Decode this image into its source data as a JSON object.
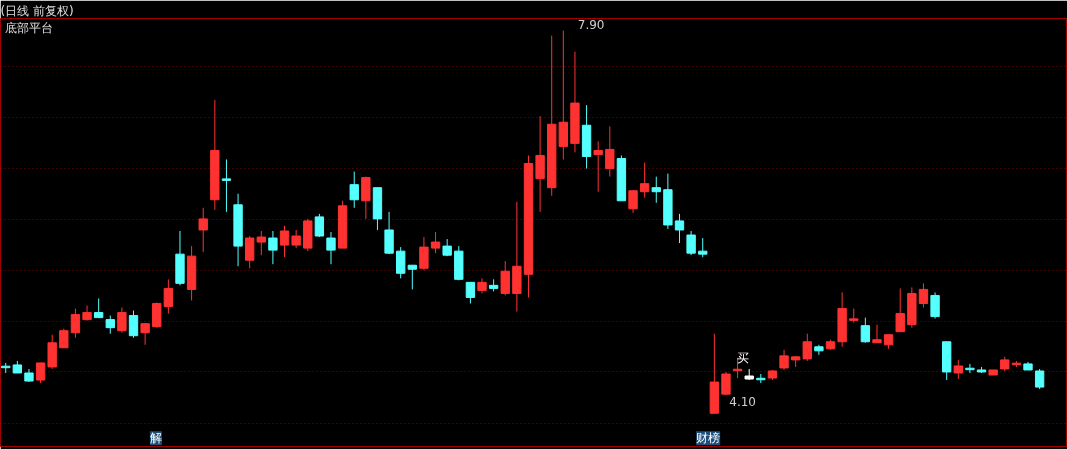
{
  "chart_data": {
    "type": "candlestick",
    "title": "(日线 前复权)",
    "subtitle": "底部平台",
    "categories": [
      null,
      null,
      null,
      null,
      null,
      null,
      null,
      null,
      null,
      null,
      null,
      null,
      null,
      null,
      null,
      null,
      null,
      null,
      null,
      null,
      null,
      null,
      null,
      null,
      null,
      null,
      null,
      null,
      null,
      null,
      null,
      null,
      null,
      null,
      null,
      null,
      null,
      null,
      null,
      null,
      null,
      null,
      null,
      null,
      null,
      null,
      null,
      null,
      null,
      null,
      null,
      null,
      null,
      null,
      null,
      null,
      null,
      null,
      null,
      null,
      null,
      null,
      null,
      null,
      null,
      null,
      null,
      null,
      null,
      null,
      null,
      null,
      null,
      null,
      null,
      null,
      null,
      null,
      null,
      null,
      null,
      null,
      null,
      null,
      null,
      null,
      null,
      null,
      null,
      null
    ],
    "ohlc": [
      [
        4.56,
        4.6,
        4.5,
        4.56
      ],
      [
        4.58,
        4.62,
        4.5,
        4.5
      ],
      [
        4.5,
        4.54,
        4.41,
        4.42
      ],
      [
        4.43,
        4.6,
        4.4,
        4.6
      ],
      [
        4.56,
        4.88,
        4.54,
        4.8
      ],
      [
        4.75,
        4.94,
        4.75,
        4.92
      ],
      [
        4.9,
        5.14,
        4.85,
        5.08
      ],
      [
        5.03,
        5.17,
        5.02,
        5.1
      ],
      [
        5.1,
        5.24,
        5.05,
        5.05
      ],
      [
        5.03,
        5.07,
        4.89,
        4.95
      ],
      [
        4.92,
        5.15,
        4.9,
        5.1
      ],
      [
        5.07,
        5.12,
        4.85,
        4.87
      ],
      [
        4.9,
        4.99,
        4.78,
        4.99
      ],
      [
        4.96,
        5.2,
        4.95,
        5.19
      ],
      [
        5.16,
        5.43,
        5.09,
        5.34
      ],
      [
        5.68,
        5.91,
        5.37,
        5.39
      ],
      [
        5.33,
        5.76,
        5.22,
        5.66
      ],
      [
        5.92,
        6.14,
        5.7,
        6.03
      ],
      [
        6.22,
        7.21,
        6.12,
        6.71
      ],
      [
        6.42,
        6.62,
        6.1,
        6.42
      ],
      [
        6.17,
        6.28,
        5.56,
        5.76
      ],
      [
        5.62,
        5.86,
        5.54,
        5.84
      ],
      [
        5.8,
        5.91,
        5.67,
        5.85
      ],
      [
        5.84,
        5.91,
        5.58,
        5.72
      ],
      [
        5.77,
        5.96,
        5.65,
        5.91
      ],
      [
        5.77,
        5.92,
        5.74,
        5.86
      ],
      [
        5.74,
        6.03,
        5.71,
        6.01
      ],
      [
        6.05,
        6.08,
        5.85,
        5.86
      ],
      [
        5.84,
        5.9,
        5.58,
        5.72
      ],
      [
        5.74,
        6.21,
        5.74,
        6.16
      ],
      [
        6.37,
        6.5,
        6.14,
        6.22
      ],
      [
        6.21,
        6.45,
        6.03,
        6.44
      ],
      [
        6.34,
        6.34,
        5.92,
        6.03
      ],
      [
        5.92,
        6.1,
        5.68,
        5.69
      ],
      [
        5.71,
        5.75,
        5.44,
        5.49
      ],
      [
        5.57,
        5.57,
        5.33,
        5.53
      ],
      [
        5.54,
        5.85,
        5.52,
        5.75
      ],
      [
        5.74,
        5.9,
        5.69,
        5.8
      ],
      [
        5.76,
        5.83,
        5.66,
        5.67
      ],
      [
        5.71,
        5.76,
        5.42,
        5.43
      ],
      [
        5.4,
        5.4,
        5.19,
        5.25
      ],
      [
        5.32,
        5.44,
        5.29,
        5.4
      ],
      [
        5.37,
        5.43,
        5.31,
        5.34
      ],
      [
        5.29,
        5.61,
        5.27,
        5.51
      ],
      [
        5.29,
        6.2,
        5.11,
        5.56
      ],
      [
        5.48,
        6.66,
        5.25,
        6.58
      ],
      [
        6.43,
        7.05,
        6.1,
        6.66
      ],
      [
        6.34,
        7.85,
        6.26,
        6.97
      ],
      [
        6.75,
        7.9,
        6.62,
        6.99
      ],
      [
        6.78,
        7.69,
        6.69,
        7.18
      ],
      [
        6.96,
        7.16,
        6.53,
        6.65
      ],
      [
        6.67,
        6.8,
        6.3,
        6.71
      ],
      [
        6.53,
        6.95,
        6.45,
        6.72
      ],
      [
        6.63,
        6.66,
        6.21,
        6.21
      ],
      [
        6.13,
        6.31,
        6.09,
        6.31
      ],
      [
        6.3,
        6.59,
        6.24,
        6.38
      ],
      [
        6.34,
        6.45,
        6.19,
        6.3
      ],
      [
        6.32,
        6.48,
        5.93,
        5.97
      ],
      [
        6.01,
        6.08,
        5.79,
        5.92
      ],
      [
        5.87,
        5.91,
        5.67,
        5.69
      ],
      [
        5.71,
        5.84,
        5.65,
        5.68
      ],
      [
        4.1,
        4.89,
        4.1,
        4.41
      ],
      [
        4.29,
        4.51,
        4.28,
        4.49
      ],
      [
        4.53,
        4.65,
        4.45,
        4.53
      ],
      [
        4.44,
        4.54,
        4.43,
        4.47
      ],
      [
        4.44,
        4.49,
        4.4,
        4.44
      ],
      [
        4.45,
        4.53,
        4.43,
        4.52
      ],
      [
        4.55,
        4.73,
        4.53,
        4.67
      ],
      [
        4.63,
        4.67,
        4.56,
        4.66
      ],
      [
        4.64,
        4.89,
        4.62,
        4.81
      ],
      [
        4.76,
        4.78,
        4.68,
        4.72
      ],
      [
        4.74,
        4.83,
        4.73,
        4.81
      ],
      [
        4.81,
        5.3,
        4.76,
        5.14
      ],
      [
        5.03,
        5.14,
        5.0,
        5.03
      ],
      [
        4.97,
        5.05,
        4.8,
        4.81
      ],
      [
        4.8,
        4.98,
        4.8,
        4.83
      ],
      [
        4.78,
        4.88,
        4.74,
        4.88
      ],
      [
        4.91,
        5.34,
        4.91,
        5.09
      ],
      [
        4.98,
        5.35,
        4.95,
        5.29
      ],
      [
        5.19,
        5.39,
        5.15,
        5.33
      ],
      [
        5.27,
        5.3,
        5.04,
        5.06
      ],
      [
        4.81,
        4.81,
        4.43,
        4.51
      ],
      [
        4.5,
        4.63,
        4.44,
        4.57
      ],
      [
        4.54,
        4.59,
        4.5,
        4.54
      ],
      [
        4.53,
        4.56,
        4.5,
        4.51
      ],
      [
        4.48,
        4.53,
        4.48,
        4.53
      ],
      [
        4.54,
        4.66,
        4.52,
        4.63
      ],
      [
        4.59,
        4.62,
        4.56,
        4.59
      ],
      [
        4.59,
        4.61,
        4.53,
        4.53
      ],
      [
        4.52,
        4.54,
        4.34,
        4.36
      ]
    ],
    "colors": [
      "#54ffff",
      "#54ffff",
      "#54ffff",
      "#ff3232",
      "#ff3232",
      "#ff3232",
      "#ff3232",
      "#ff3232",
      "#54ffff",
      "#54ffff",
      "#ff3232",
      "#54ffff",
      "#ff3232",
      "#ff3232",
      "#ff3232",
      "#54ffff",
      "#ff3232",
      "#ff3232",
      "#ff3232",
      "#54ffff",
      "#54ffff",
      "#ff3232",
      "#ff3232",
      "#54ffff",
      "#ff3232",
      "#ff3232",
      "#ff3232",
      "#54ffff",
      "#54ffff",
      "#ff3232",
      "#54ffff",
      "#ff3232",
      "#54ffff",
      "#54ffff",
      "#54ffff",
      "#54ffff",
      "#ff3232",
      "#ff3232",
      "#54ffff",
      "#54ffff",
      "#54ffff",
      "#ff3232",
      "#54ffff",
      "#ff3232",
      "#ff3232",
      "#ff3232",
      "#ff3232",
      "#ff3232",
      "#ff3232",
      "#ff3232",
      "#54ffff",
      "#ff3232",
      "#ff3232",
      "#54ffff",
      "#ff3232",
      "#ff3232",
      "#54ffff",
      "#54ffff",
      "#54ffff",
      "#54ffff",
      "#54ffff",
      "#ff3232",
      "#ff3232",
      "#ff3232",
      "#ffffff",
      "#54ffff",
      "#ff3232",
      "#ff3232",
      "#ff3232",
      "#ff3232",
      "#54ffff",
      "#ff3232",
      "#ff3232",
      "#ff3232",
      "#54ffff",
      "#ff3232",
      "#ff3232",
      "#ff3232",
      "#ff3232",
      "#ff3232",
      "#54ffff",
      "#54ffff",
      "#ff3232",
      "#54ffff",
      "#54ffff",
      "#ff3232",
      "#ff3232",
      "#ff3232",
      "#54ffff",
      "#54ffff"
    ],
    "ylim": [
      3.77,
      8.02
    ],
    "yticks": [
      {
        "value": 7.54,
        "label": null
      },
      {
        "value": 7.04,
        "label": null
      },
      {
        "value": 6.53,
        "label": null
      },
      {
        "value": 6.02,
        "label": null
      },
      {
        "value": 5.52,
        "label": null
      },
      {
        "value": 5.01,
        "label": null
      },
      {
        "value": 4.51,
        "label": null
      },
      {
        "value": 4.0,
        "label": null
      }
    ],
    "grid": "y",
    "tick_labels": false,
    "annotations": [
      "7.90",
      "4.10",
      "买",
      "解",
      "财榜"
    ]
  }
}
